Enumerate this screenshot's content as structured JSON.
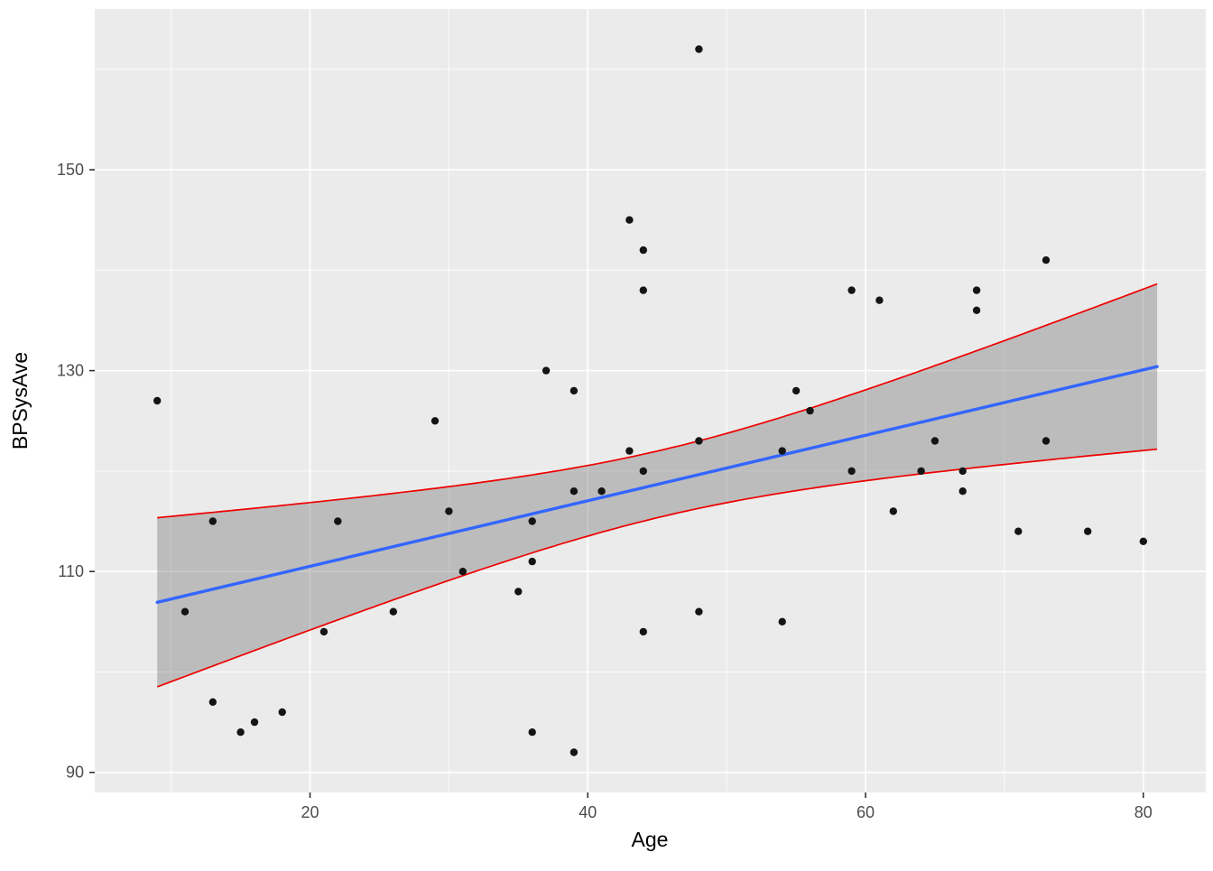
{
  "chart_data": {
    "type": "scatter",
    "title": "",
    "xlabel": "Age",
    "ylabel": "BPSysAve",
    "xlim": [
      4.5,
      84.5
    ],
    "ylim": [
      88,
      166
    ],
    "x_ticks": [
      20,
      40,
      60,
      80
    ],
    "y_ticks": [
      90,
      110,
      130,
      150
    ],
    "x_minor_ticks": [
      10,
      30,
      50,
      70
    ],
    "y_minor_ticks": [
      100,
      120,
      140,
      160
    ],
    "grid": true,
    "legend": "none",
    "points": [
      [
        9,
        127
      ],
      [
        11,
        106
      ],
      [
        13,
        115
      ],
      [
        13,
        97
      ],
      [
        15,
        94
      ],
      [
        16,
        95
      ],
      [
        18,
        96
      ],
      [
        21,
        104
      ],
      [
        22,
        115
      ],
      [
        26,
        106
      ],
      [
        29,
        125
      ],
      [
        30,
        116
      ],
      [
        31,
        110
      ],
      [
        35,
        108
      ],
      [
        36,
        115
      ],
      [
        36,
        111
      ],
      [
        36,
        94
      ],
      [
        37,
        130
      ],
      [
        39,
        128
      ],
      [
        39,
        118
      ],
      [
        39,
        92
      ],
      [
        41,
        118
      ],
      [
        43,
        145
      ],
      [
        43,
        122
      ],
      [
        44,
        142
      ],
      [
        44,
        138
      ],
      [
        44,
        120
      ],
      [
        44,
        104
      ],
      [
        48,
        162
      ],
      [
        48,
        123
      ],
      [
        48,
        106
      ],
      [
        54,
        122
      ],
      [
        54,
        105
      ],
      [
        55,
        128
      ],
      [
        56,
        126
      ],
      [
        59,
        138
      ],
      [
        59,
        120
      ],
      [
        61,
        137
      ],
      [
        62,
        116
      ],
      [
        64,
        120
      ],
      [
        65,
        123
      ],
      [
        67,
        120
      ],
      [
        67,
        118
      ],
      [
        68,
        138
      ],
      [
        68,
        136
      ],
      [
        71,
        114
      ],
      [
        73,
        141
      ],
      [
        73,
        123
      ],
      [
        76,
        114
      ],
      [
        80,
        113
      ]
    ],
    "regression_line": {
      "type": "linear",
      "intercept": 104.0,
      "slope": 0.326,
      "x_start": 9,
      "x_end": 81
    },
    "confidence_band": {
      "halfwidth_a": 11,
      "halfwidth_b": 0.045,
      "center": 45.5
    },
    "colors": {
      "panel_background": "#EBEBEB",
      "grid_line": "#FFFFFF",
      "point": "#141414",
      "regression_line": "#3366FF",
      "ci_border": "#EE0000",
      "ci_ribbon": "rgba(100,100,100,0.35)",
      "tick_text": "#4D4D4D",
      "axis_title_text": "#000000",
      "tick_mark": "#333333"
    }
  }
}
